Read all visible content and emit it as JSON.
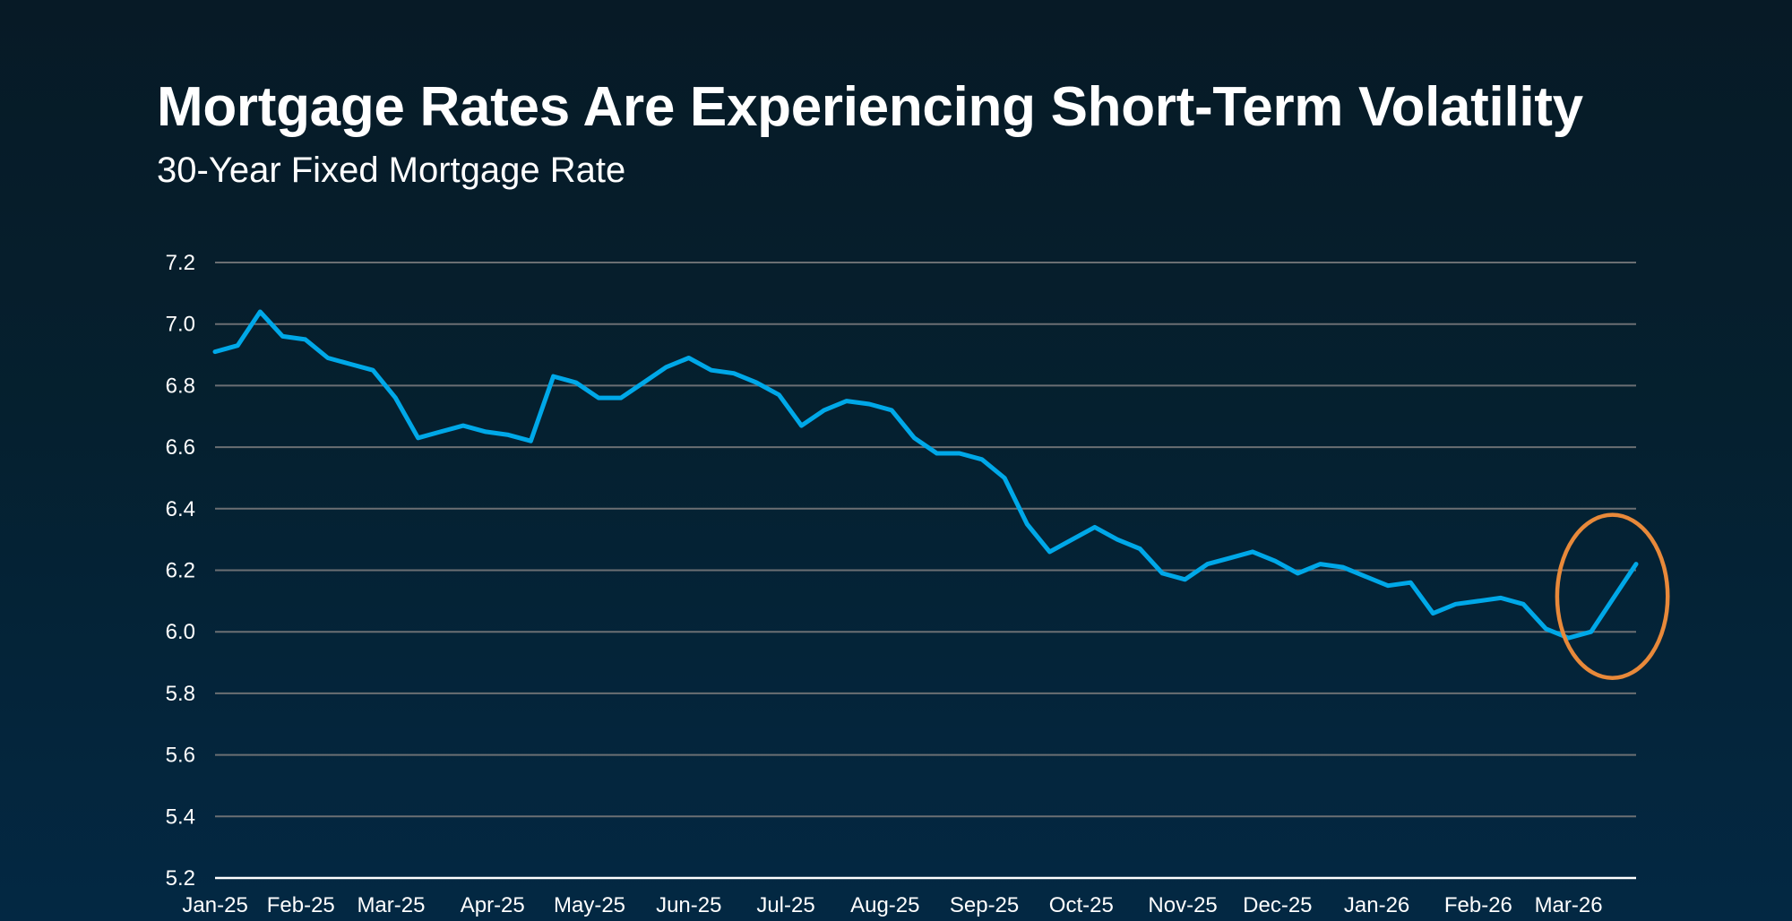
{
  "header": {
    "title": "Mortgage Rates Are Experiencing Short-Term Volatility",
    "subtitle": "30-Year Fixed Mortgage Rate"
  },
  "colors": {
    "line": "#00a8e8",
    "grid": "#6b6f73",
    "axis": "#ffffff",
    "highlight": "#e8893a",
    "text": "#ffffff"
  },
  "chart_data": {
    "type": "line",
    "title": "Mortgage Rates Are Experiencing Short-Term Volatility",
    "subtitle": "30-Year Fixed Mortgage Rate",
    "xlabel": "",
    "ylabel": "",
    "ylim": [
      5.2,
      7.2
    ],
    "yticks": [
      "5.2",
      "5.4",
      "5.6",
      "5.8",
      "6.0",
      "6.2",
      "6.4",
      "6.6",
      "6.8",
      "7.0",
      "7.2"
    ],
    "ytick_values": [
      5.2,
      5.4,
      5.6,
      5.8,
      6.0,
      6.2,
      6.4,
      6.6,
      6.8,
      7.0,
      7.2
    ],
    "grid": true,
    "legend": "none",
    "frequency": "weekly",
    "xticks": [
      {
        "label": "Jan-25",
        "index": 0.6
      },
      {
        "label": "Feb-25",
        "index": 4.4
      },
      {
        "label": "Mar-25",
        "index": 8.4
      },
      {
        "label": "Apr-25",
        "index": 12.9
      },
      {
        "label": "May-25",
        "index": 17.2
      },
      {
        "label": "Jun-25",
        "index": 21.6
      },
      {
        "label": "Jul-25",
        "index": 25.9
      },
      {
        "label": "Aug-25",
        "index": 30.3
      },
      {
        "label": "Sep-25",
        "index": 34.7
      },
      {
        "label": "Oct-25",
        "index": 39.0
      },
      {
        "label": "Nov-25",
        "index": 43.5
      },
      {
        "label": "Dec-25",
        "index": 47.7
      },
      {
        "label": "Jan-26",
        "index": 52.1
      },
      {
        "label": "Feb-26",
        "index": 56.6
      },
      {
        "label": "Mar-26",
        "index": 60.6
      }
    ],
    "series": [
      {
        "name": "30-Year Fixed Mortgage Rate",
        "values": [
          6.91,
          6.93,
          7.04,
          6.96,
          6.95,
          6.89,
          6.87,
          6.85,
          6.76,
          6.63,
          6.65,
          6.67,
          6.65,
          6.64,
          6.62,
          6.83,
          6.81,
          6.76,
          6.76,
          6.81,
          6.86,
          6.89,
          6.85,
          6.84,
          6.81,
          6.77,
          6.67,
          6.72,
          6.75,
          6.74,
          6.72,
          6.63,
          6.58,
          6.58,
          6.56,
          6.5,
          6.35,
          6.26,
          6.3,
          6.34,
          6.3,
          6.27,
          6.19,
          6.17,
          6.22,
          6.24,
          6.26,
          6.23,
          6.19,
          6.22,
          6.21,
          6.18,
          6.15,
          6.16,
          6.06,
          6.09,
          6.1,
          6.11,
          6.09,
          6.01,
          5.98,
          6.0,
          6.11,
          6.22
        ]
      }
    ],
    "annotations": [
      {
        "type": "ellipse",
        "description": "Highlights recent uptick in March 2026",
        "index_range": [
          59.5,
          64.4
        ],
        "value_range": [
          5.85,
          6.38
        ]
      }
    ]
  }
}
